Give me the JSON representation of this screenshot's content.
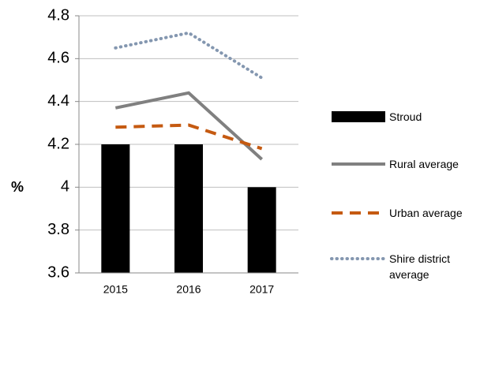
{
  "chart_data": {
    "type": "bar",
    "categories": [
      "2015",
      "2016",
      "2017"
    ],
    "ylabel": "%",
    "ylim": [
      3.6,
      4.8
    ],
    "yticks": [
      3.6,
      3.8,
      4,
      4.2,
      4.4,
      4.6,
      4.8
    ],
    "grid": true,
    "series": [
      {
        "name": "Stroud",
        "kind": "bar",
        "color": "#000000",
        "values": [
          4.2,
          4.2,
          4.0
        ]
      },
      {
        "name": "Rural average",
        "kind": "line",
        "style": "solid",
        "color": "#808080",
        "values": [
          4.37,
          4.44,
          4.13
        ]
      },
      {
        "name": "Urban average",
        "kind": "line",
        "style": "dashed",
        "color": "#c55a11",
        "values": [
          4.28,
          4.29,
          4.18
        ]
      },
      {
        "name": "Shire district average",
        "kind": "line",
        "style": "dotted",
        "color": "#8497b0",
        "values": [
          4.65,
          4.72,
          4.51
        ]
      }
    ]
  }
}
